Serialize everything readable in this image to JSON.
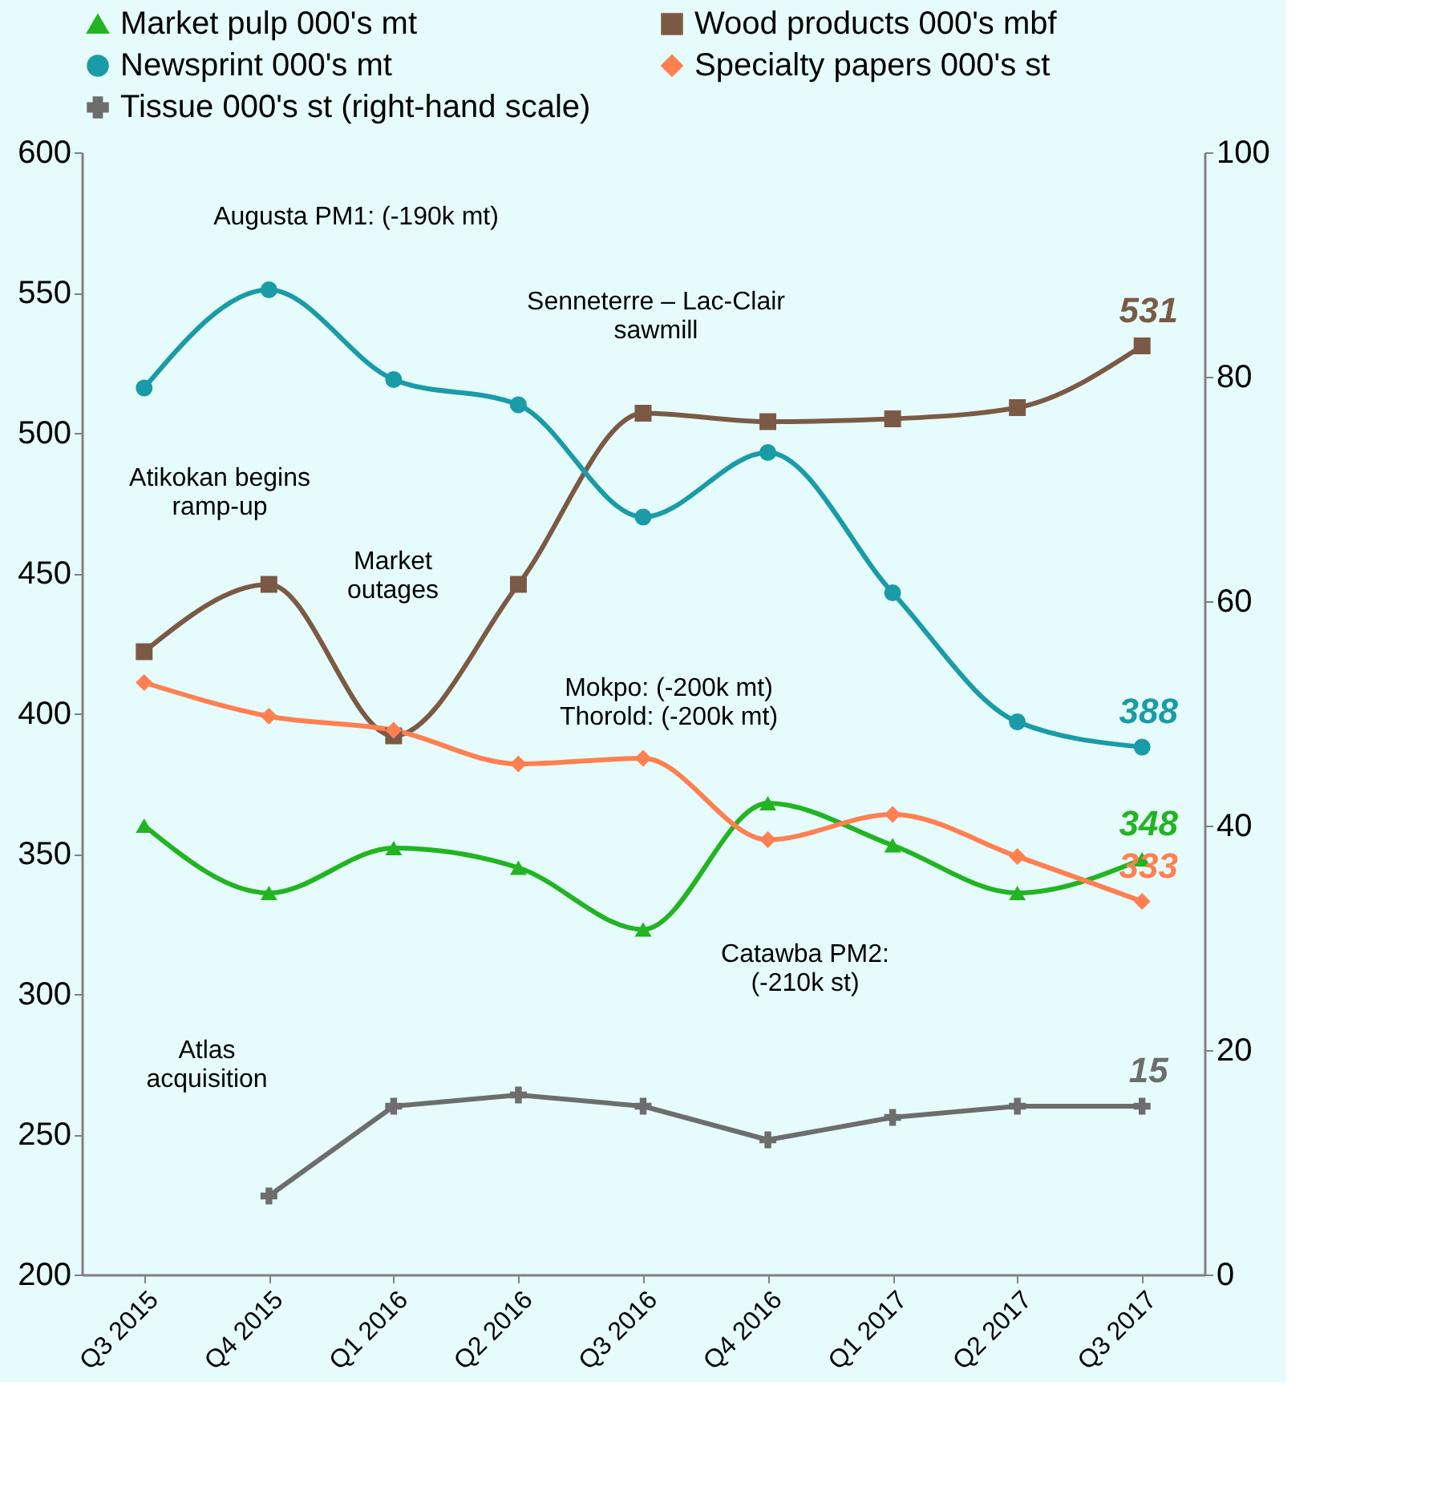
{
  "chart_data": {
    "type": "line",
    "categories": [
      "Q3 2015",
      "Q4 2015",
      "Q1 2016",
      "Q2 2016",
      "Q3 2016",
      "Q4 2016",
      "Q1 2017",
      "Q2 2017",
      "Q3 2017"
    ],
    "series": [
      {
        "name": "Market pulp 000's mt",
        "color": "#22b422",
        "marker": "triangle",
        "values": [
          360,
          336,
          352,
          345,
          323,
          368,
          353,
          336,
          348
        ],
        "value_labels": [
          null,
          null,
          null,
          null,
          null,
          null,
          null,
          null,
          "348"
        ]
      },
      {
        "name": "Wood products 000's mbf",
        "color": "#7b5a45",
        "marker": "square",
        "values": [
          422,
          446,
          392,
          446,
          507,
          504,
          505,
          509,
          531
        ],
        "value_labels": [
          null,
          null,
          null,
          null,
          null,
          null,
          null,
          null,
          "531"
        ]
      },
      {
        "name": "Newsprint 000's mt",
        "color": "#1a9ba8",
        "marker": "circle",
        "values": [
          516,
          551,
          519,
          510,
          470,
          493,
          443,
          397,
          388
        ],
        "value_labels": [
          null,
          null,
          null,
          null,
          null,
          null,
          null,
          null,
          "388"
        ]
      },
      {
        "name": "Specialty papers 000's st",
        "color": "#ff7f50",
        "marker": "diamond",
        "values": [
          411,
          399,
          394,
          382,
          384,
          355,
          364,
          349,
          333
        ],
        "value_labels": [
          null,
          null,
          null,
          null,
          null,
          null,
          null,
          null,
          "333"
        ]
      },
      {
        "name": "Tissue 000's st (right-hand scale)",
        "color": "#6d6d6d",
        "marker": "cross",
        "axis": "y2",
        "type": "line",
        "values": [
          null,
          7,
          15,
          16,
          15,
          12,
          14,
          15,
          15
        ],
        "value_labels": [
          null,
          null,
          null,
          null,
          null,
          null,
          null,
          null,
          "15"
        ]
      }
    ],
    "ylim": [
      200,
      600
    ],
    "yticks": [
      200,
      250,
      300,
      350,
      400,
      450,
      500,
      550,
      600
    ],
    "y2lim": [
      0,
      100
    ],
    "y2ticks": [
      0,
      20,
      40,
      60,
      80,
      100
    ],
    "grid": false,
    "legend": "top",
    "line_style": "solid",
    "annotations": [
      "Augusta PM1: (-190k mt)",
      "Senneterre – Lac-Clair\nsawmill",
      "Atikokan begins\nramp-up",
      "Market\noutages",
      "Mokpo: (-200k mt)\nThorold: (-200k mt)",
      "Catawba PM2:\n(-210k st)",
      "Atlas\nacquisition"
    ]
  }
}
